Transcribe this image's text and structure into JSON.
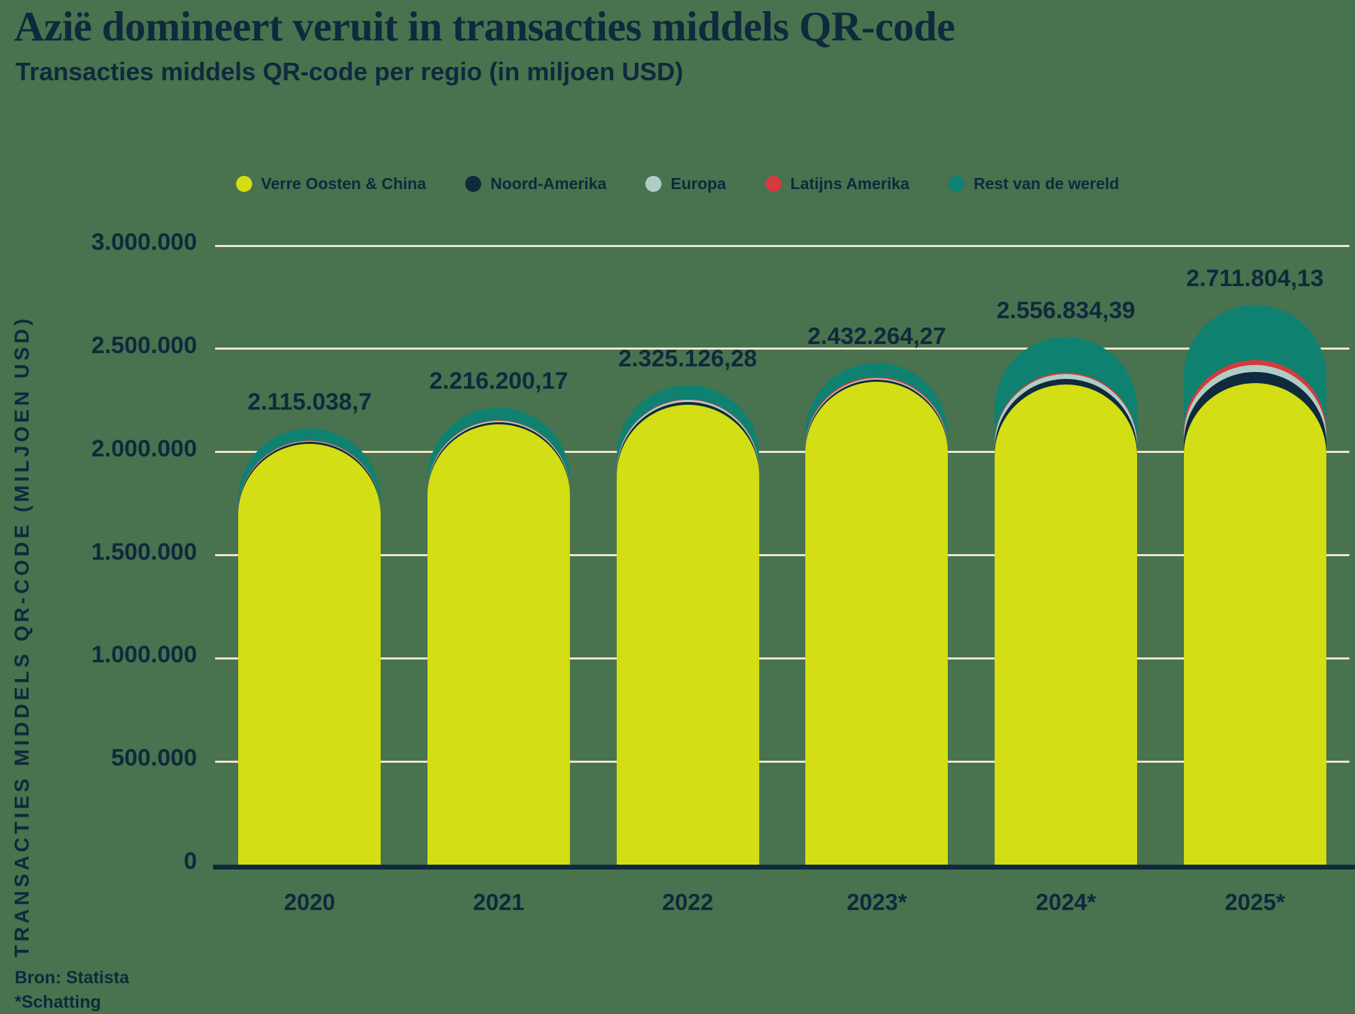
{
  "header": {
    "title": "Azië domineert veruit in transacties middels QR-code",
    "subtitle": "Transacties middels QR-code per regio (in miljoen USD)"
  },
  "source": {
    "line1": "Bron: Statista",
    "line2": "*Schatting"
  },
  "colors": {
    "background": "#49724F",
    "text": "#0E2A3C",
    "gridline": "#EFE7CB",
    "far_east": "#D3DE14",
    "north_america": "#0E2A3C",
    "europe": "#AFCDC7",
    "latin_america": "#D63A3C",
    "rest_of_world": "#0F8170"
  },
  "chart_data": {
    "type": "bar",
    "stacked": true,
    "title": "Azië domineert veruit in transacties middels QR-code",
    "subtitle": "Transacties middels QR-code per regio (in miljoen USD)",
    "xlabel": "",
    "ylabel": "TRANSACTIES MIDDELS QR-CODE (MILJOEN USD)",
    "ylim": [
      0,
      3000000
    ],
    "grid": true,
    "legend_position": "top",
    "ytick_labels": [
      "0",
      "500.000",
      "1.000.000",
      "1.500.000",
      "2.000.000",
      "2.500.000",
      "3.000.000"
    ],
    "categories": [
      "2020",
      "2021",
      "2022",
      "2023*",
      "2024*",
      "2025*"
    ],
    "totals": [
      2115038.7,
      2216200.17,
      2325126.28,
      2432264.27,
      2556834.39,
      2711804.13
    ],
    "totals_labels": [
      "2.115.038,7",
      "2.216.200,17",
      "2.325.126,28",
      "2.432.264,27",
      "2.556.834,39",
      "2.711.804,13"
    ],
    "series": [
      {
        "name": "Verre Oosten & China",
        "color_key": "far_east",
        "values": [
          2040000,
          2135000,
          2230000,
          2340000,
          2326000,
          2333000
        ]
      },
      {
        "name": "Noord-Amerika",
        "color_key": "north_america",
        "values": [
          9000,
          11000,
          14000,
          12000,
          27000,
          54000
        ]
      },
      {
        "name": "Europa",
        "color_key": "europe",
        "values": [
          5000,
          6000,
          8000,
          7000,
          24000,
          34000
        ]
      },
      {
        "name": "Latijns Amerika",
        "color_key": "latin_america",
        "values": [
          3000,
          4200,
          5126.28,
          5264.27,
          6000,
          24000
        ]
      },
      {
        "name": "Rest van de wereld",
        "color_key": "rest_of_world",
        "values": [
          58038.7,
          60000.17,
          68000,
          68000,
          173834.39,
          266804.13
        ]
      }
    ]
  }
}
